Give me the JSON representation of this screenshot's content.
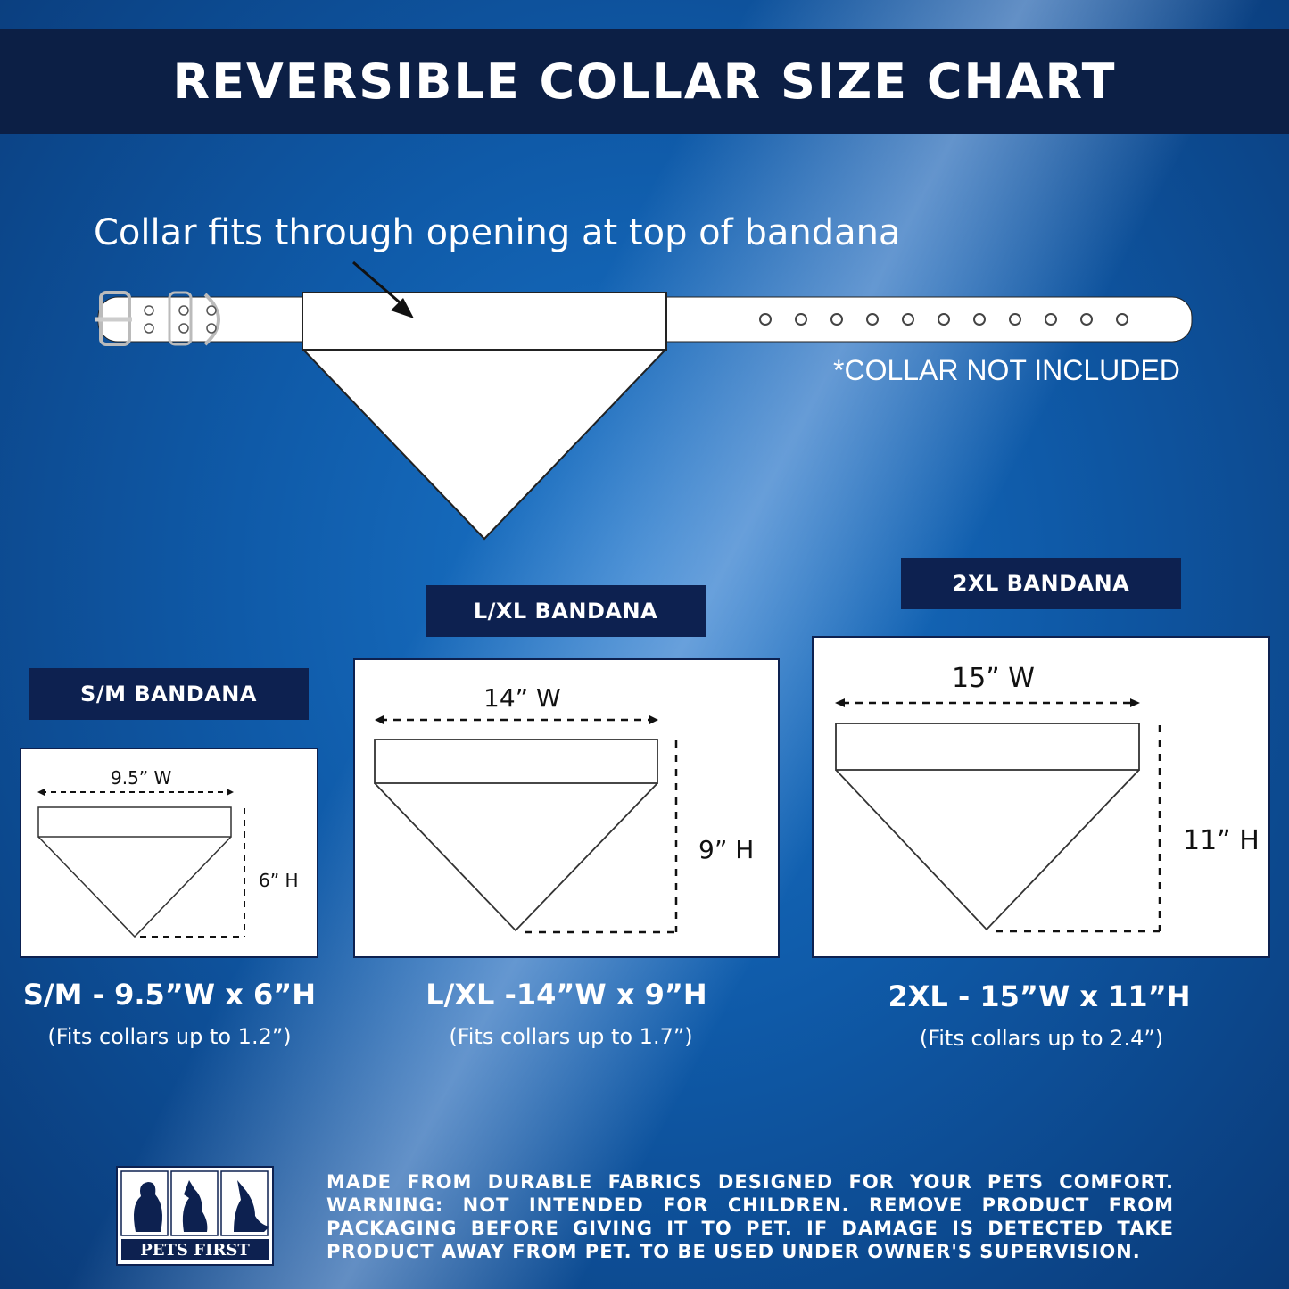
{
  "title": "REVERSIBLE COLLAR SIZE CHART",
  "caption": "Collar fits through opening at top of bandana",
  "collar_note": "*COLLAR NOT INCLUDED",
  "sizes": [
    {
      "tag": "S/M BANDANA",
      "width_label": "9.5” W",
      "height_label": "6” H",
      "summary": "S/M - 9.5”W x 6”H",
      "fit": "(Fits collars up to 1.2”)"
    },
    {
      "tag": "L/XL BANDANA",
      "width_label": "14” W",
      "height_label": "9” H",
      "summary": "L/XL -14”W x 9”H",
      "fit": "(Fits collars up to 1.7”)"
    },
    {
      "tag": "2XL BANDANA",
      "width_label": "15” W",
      "height_label": "11” H",
      "summary": "2XL - 15”W x 11”H",
      "fit": "(Fits collars up to 2.4”)"
    }
  ],
  "footer": {
    "text": "MADE FROM DURABLE FABRICS DESIGNED FOR YOUR PETS COMFORT. WARNING: NOT INTENDED FOR CHILDREN. REMOVE PRODUCT FROM PACKAGING BEFORE GIVING IT TO PET. IF DAMAGE IS DETECTED TAKE PRODUCT AWAY FROM PET. TO BE USED UNDER OWNER'S SUPERVISION.",
    "logo": "PETS FIRST"
  },
  "colors": {
    "navy": "#0c1f45",
    "blue": "#1565b5"
  }
}
